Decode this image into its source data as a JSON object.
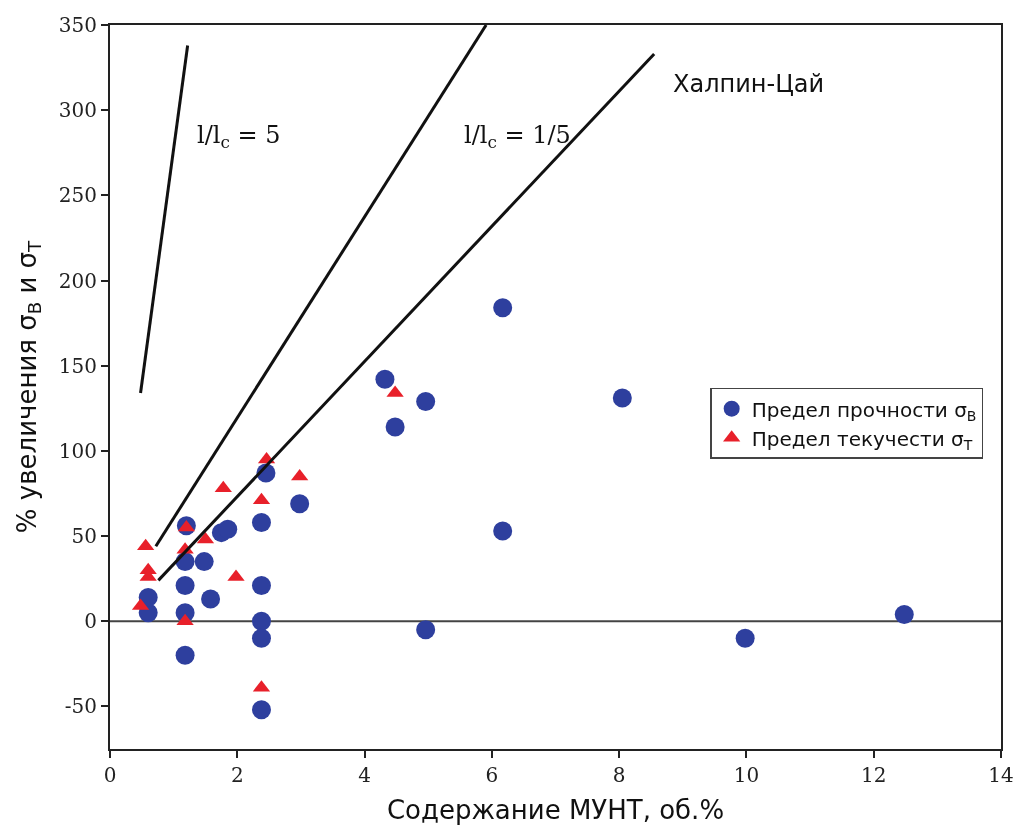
{
  "chart_data": {
    "type": "scatter",
    "xlabel": "Содержание МУНТ, об.%",
    "ylabel": "% увеличения σ$_{В}$ и σ$_{Т}$",
    "xlim": [
      0,
      14
    ],
    "xticks": [
      0,
      2,
      4,
      6,
      8,
      10,
      12,
      14
    ],
    "ylim": [
      -75,
      350
    ],
    "yticks": [
      -50,
      0,
      50,
      100,
      150,
      200,
      250,
      300,
      350
    ],
    "grid": false,
    "legend": "right",
    "series": [
      {
        "name": "Предел прочности σ$_{В}$",
        "color": "#2e3f9e",
        "marker": "circle",
        "x": [
          0.6,
          0.6,
          1.18,
          1.18,
          1.18,
          1.18,
          1.2,
          1.48,
          1.58,
          1.75,
          1.85,
          2.38,
          2.38,
          2.38,
          2.38,
          2.38,
          2.45,
          2.98,
          4.32,
          4.96,
          4.48,
          8.05,
          6.17,
          4.96,
          6.17,
          9.98,
          12.48
        ],
        "values": [
          5,
          14,
          21,
          5,
          -20,
          35,
          56,
          35,
          13,
          52,
          54,
          58,
          21,
          0,
          -10,
          -52,
          87,
          69,
          142,
          129,
          114,
          131,
          53,
          -5,
          184,
          -10,
          4
        ]
      },
      {
        "name": "Предел текучести σ$_{Т}$",
        "color": "#e8202a",
        "marker": "triangle",
        "x": [
          0.56,
          0.6,
          0.6,
          0.48,
          1.2,
          1.18,
          1.5,
          1.18,
          1.78,
          1.98,
          2.38,
          2.46,
          2.98,
          2.38,
          4.48
        ],
        "values": [
          44,
          30,
          26,
          9,
          55,
          42,
          48,
          0,
          78,
          26,
          71,
          95,
          85,
          -39,
          134
        ]
      },
      {
        "type": "line",
        "color": "#111111",
        "marker": "none",
        "x": [
          0.48,
          1.22
        ],
        "values": [
          134,
          338
        ]
      },
      {
        "type": "line",
        "color": "#111111",
        "marker": "none",
        "x": [
          0.72,
          5.91
        ],
        "values": [
          44,
          350
        ]
      },
      {
        "type": "line",
        "color": "#111111",
        "marker": "none",
        "x": [
          0.76,
          8.55
        ],
        "values": [
          24,
          333
        ]
      }
    ],
    "ref_lines": [
      {
        "axis": "y",
        "value": 0,
        "color": "#444444"
      }
    ],
    "annotations": [
      "l/l$_{c}$ = 5",
      "l/l$_{c}$ = 1/5",
      "Халпин-Цай"
    ]
  }
}
